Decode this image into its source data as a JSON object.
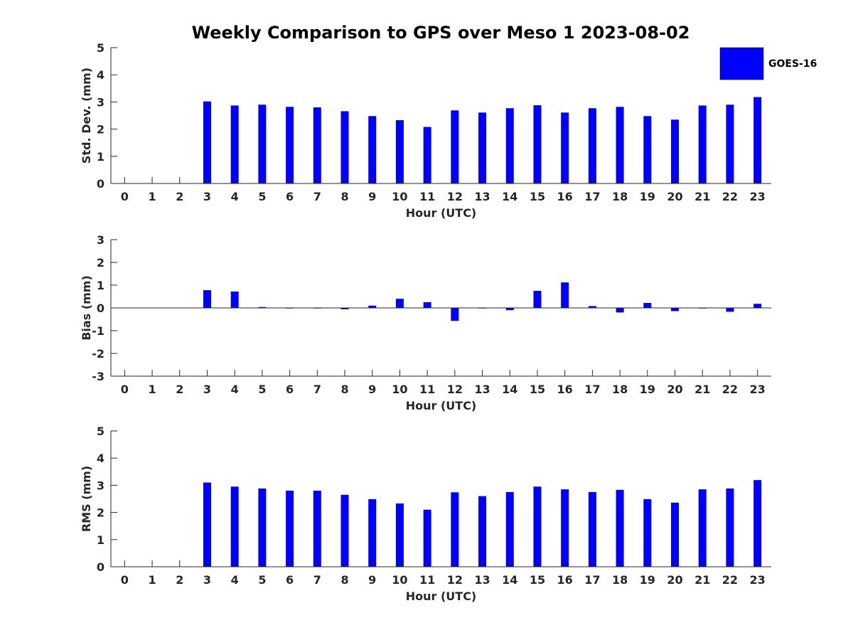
{
  "colors": {
    "bar": "#0000ff",
    "axis": "#262626",
    "background": "#ffffff"
  },
  "legend": {
    "label": "GOES-16"
  },
  "chart_data": [
    {
      "type": "bar",
      "title": "Weekly Comparison to GPS over Meso 1 2023-08-02",
      "xlabel": "Hour (UTC)",
      "ylabel": "Std. Dev. (mm)",
      "categories": [
        "0",
        "1",
        "2",
        "3",
        "4",
        "5",
        "6",
        "7",
        "8",
        "9",
        "10",
        "11",
        "12",
        "13",
        "14",
        "15",
        "16",
        "17",
        "18",
        "19",
        "20",
        "21",
        "22",
        "23"
      ],
      "ylim": [
        0,
        5
      ],
      "yticks": [
        "0",
        "1",
        "2",
        "3",
        "4",
        "5"
      ],
      "series": [
        {
          "name": "GOES-16",
          "values": [
            null,
            null,
            null,
            3.02,
            2.87,
            2.9,
            2.82,
            2.8,
            2.66,
            2.48,
            2.33,
            2.08,
            2.69,
            2.61,
            2.77,
            2.88,
            2.61,
            2.77,
            2.82,
            2.48,
            2.35,
            2.87,
            2.9,
            3.18
          ]
        }
      ]
    },
    {
      "type": "bar",
      "title": "",
      "xlabel": "Hour (UTC)",
      "ylabel": "Bias (mm)",
      "categories": [
        "0",
        "1",
        "2",
        "3",
        "4",
        "5",
        "6",
        "7",
        "8",
        "9",
        "10",
        "11",
        "12",
        "13",
        "14",
        "15",
        "16",
        "17",
        "18",
        "19",
        "20",
        "21",
        "22",
        "23"
      ],
      "ylim": [
        -3,
        3
      ],
      "yticks": [
        "-3",
        "-2",
        "-1",
        "0",
        "1",
        "2",
        "3"
      ],
      "series": [
        {
          "name": "GOES-16",
          "values": [
            null,
            null,
            null,
            0.78,
            0.72,
            0.04,
            -0.02,
            -0.02,
            -0.06,
            0.1,
            0.4,
            0.25,
            -0.57,
            -0.02,
            -0.1,
            0.75,
            1.12,
            0.08,
            -0.2,
            0.22,
            -0.14,
            -0.02,
            -0.17,
            0.18
          ]
        }
      ]
    },
    {
      "type": "bar",
      "title": "",
      "xlabel": "Hour (UTC)",
      "ylabel": "RMS (mm)",
      "categories": [
        "0",
        "1",
        "2",
        "3",
        "4",
        "5",
        "6",
        "7",
        "8",
        "9",
        "10",
        "11",
        "12",
        "13",
        "14",
        "15",
        "16",
        "17",
        "18",
        "19",
        "20",
        "21",
        "22",
        "23"
      ],
      "ylim": [
        0,
        5
      ],
      "yticks": [
        "0",
        "1",
        "2",
        "3",
        "4",
        "5"
      ],
      "series": [
        {
          "name": "GOES-16",
          "values": [
            null,
            null,
            null,
            3.1,
            2.95,
            2.88,
            2.8,
            2.8,
            2.65,
            2.49,
            2.33,
            2.1,
            2.74,
            2.6,
            2.75,
            2.95,
            2.85,
            2.75,
            2.83,
            2.49,
            2.36,
            2.85,
            2.88,
            3.19
          ]
        }
      ]
    }
  ]
}
